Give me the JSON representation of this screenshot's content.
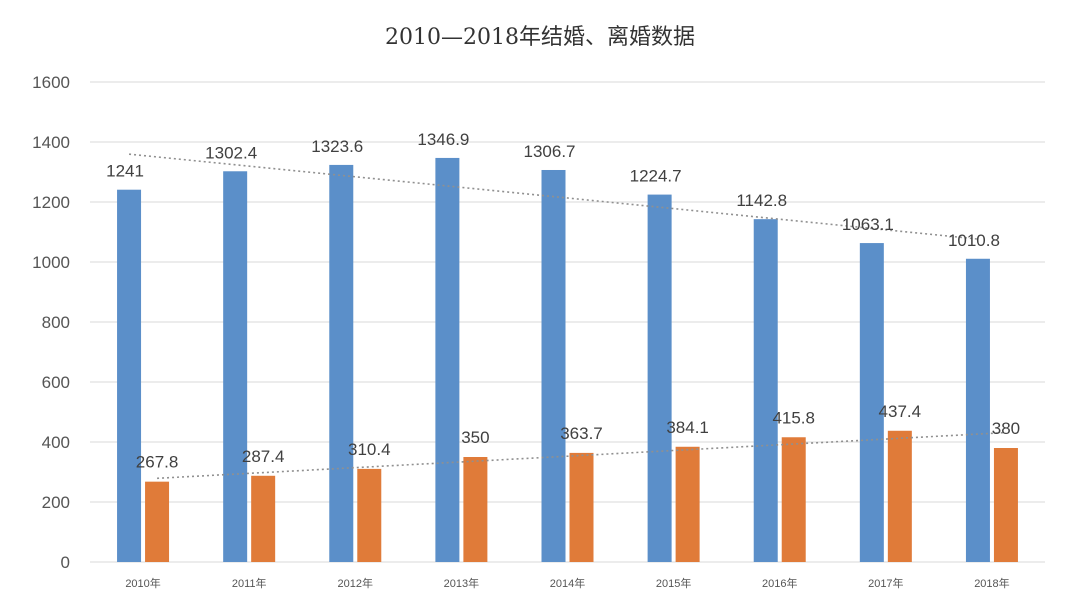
{
  "chart_data": {
    "type": "bar",
    "title": "2010—2018年结婚、离婚数据",
    "categories": [
      "2010年",
      "2011年",
      "2012年",
      "2013年",
      "2014年",
      "2015年",
      "2016年",
      "2017年",
      "2018年"
    ],
    "series": [
      {
        "values": [
          1241,
          1302.4,
          1323.6,
          1346.9,
          1306.7,
          1224.7,
          1142.8,
          1063.1,
          1010.8
        ],
        "color": "#5b8fc9",
        "trendline": true
      },
      {
        "values": [
          267.8,
          287.4,
          310.4,
          350,
          363.7,
          384.1,
          415.8,
          437.4,
          380
        ],
        "color": "#e07b39",
        "trendline": true
      }
    ],
    "data_labels": [
      [
        "1241",
        "1302.4",
        "1323.6",
        "1346.9",
        "1306.7",
        "1224.7",
        "1142.8",
        "1063.1",
        "1010.8"
      ],
      [
        "267.8",
        "287.4",
        "310.4",
        "350",
        "363.7",
        "384.1",
        "415.8",
        "437.4",
        "380"
      ]
    ],
    "yticks": [
      "0",
      "200",
      "400",
      "600",
      "800",
      "1000",
      "1200",
      "1400",
      "1600"
    ],
    "ylim": [
      0,
      1600
    ],
    "grid": true,
    "xlabel": "",
    "ylabel": ""
  }
}
